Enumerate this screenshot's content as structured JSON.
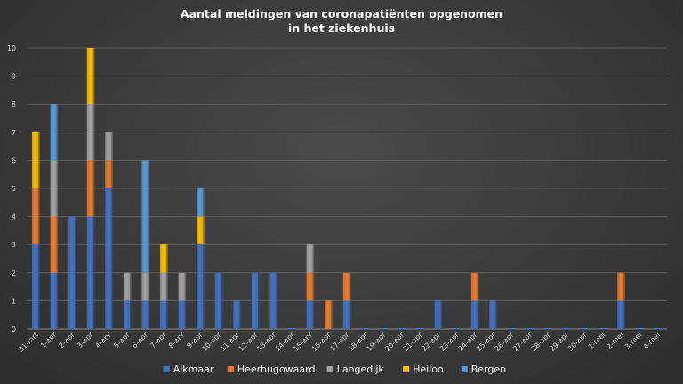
{
  "chart_data": {
    "type": "bar",
    "stacked": true,
    "title_lines": [
      "Aantal meldingen van coronapatiënten opgenomen",
      "in het ziekenhuis"
    ],
    "xlabel": "",
    "ylabel": "",
    "ylim": [
      0,
      10
    ],
    "yticks": [
      0,
      1,
      2,
      3,
      4,
      5,
      6,
      7,
      8,
      9,
      10
    ],
    "grid": true,
    "legend_position": "bottom",
    "categories": [
      "31-mrt",
      "1-apr",
      "2-apr",
      "3-apr",
      "4-apr",
      "5-apr",
      "6-apr",
      "7-apr",
      "8-apr",
      "9-apr",
      "10-apr",
      "11-apr",
      "12-apr",
      "13-apr",
      "14-apr",
      "15-apr",
      "16-apr",
      "17-apr",
      "18-apr",
      "19-apr",
      "20-apr",
      "21-apr",
      "22-apr",
      "23-apr",
      "24-apr",
      "25-apr",
      "26-apr",
      "27-apr",
      "28-apr",
      "29-apr",
      "30-apr",
      "1-mei",
      "2-mei",
      "3-mei",
      "4-mei"
    ],
    "series": [
      {
        "name": "Alkmaar",
        "color": "#4472c4",
        "values": [
          3,
          2,
          4,
          4,
          5,
          1,
          1,
          1,
          1,
          3,
          2,
          1,
          2,
          2,
          0,
          1,
          0,
          1,
          0,
          0,
          0,
          0,
          1,
          0,
          1,
          1,
          0,
          0,
          0,
          0,
          0,
          0,
          1,
          0,
          0
        ]
      },
      {
        "name": "Heerhugowaard",
        "color": "#ed7d31",
        "values": [
          2,
          2,
          0,
          2,
          1,
          0,
          0,
          0,
          0,
          0,
          0,
          0,
          0,
          0,
          0,
          1,
          1,
          1,
          0,
          0,
          0,
          0,
          0,
          0,
          1,
          0,
          0,
          0,
          0,
          0,
          0,
          0,
          1,
          0,
          0
        ]
      },
      {
        "name": "Langedijk",
        "color": "#a5a5a5",
        "values": [
          0,
          2,
          0,
          2,
          1,
          1,
          1,
          1,
          1,
          0,
          0,
          0,
          0,
          0,
          0,
          1,
          0,
          0,
          0,
          0,
          0,
          0,
          0,
          0,
          0,
          0,
          0,
          0,
          0,
          0,
          0,
          0,
          0,
          0,
          0
        ]
      },
      {
        "name": "Heiloo",
        "color": "#ffc000",
        "values": [
          2,
          0,
          0,
          2,
          0,
          0,
          0,
          1,
          0,
          1,
          0,
          0,
          0,
          0,
          0,
          0,
          0,
          0,
          0,
          0,
          0,
          0,
          0,
          0,
          0,
          0,
          0,
          0,
          0,
          0,
          0,
          0,
          0,
          0,
          0
        ]
      },
      {
        "name": "Bergen",
        "color": "#5b9bd5",
        "values": [
          0,
          2,
          0,
          0,
          0,
          0,
          4,
          0,
          0,
          1,
          0,
          0,
          0,
          0,
          0,
          0,
          0,
          0,
          0,
          0,
          0,
          0,
          0,
          0,
          0,
          0,
          0,
          0,
          0,
          0,
          0,
          0,
          0,
          0,
          0
        ]
      }
    ]
  }
}
